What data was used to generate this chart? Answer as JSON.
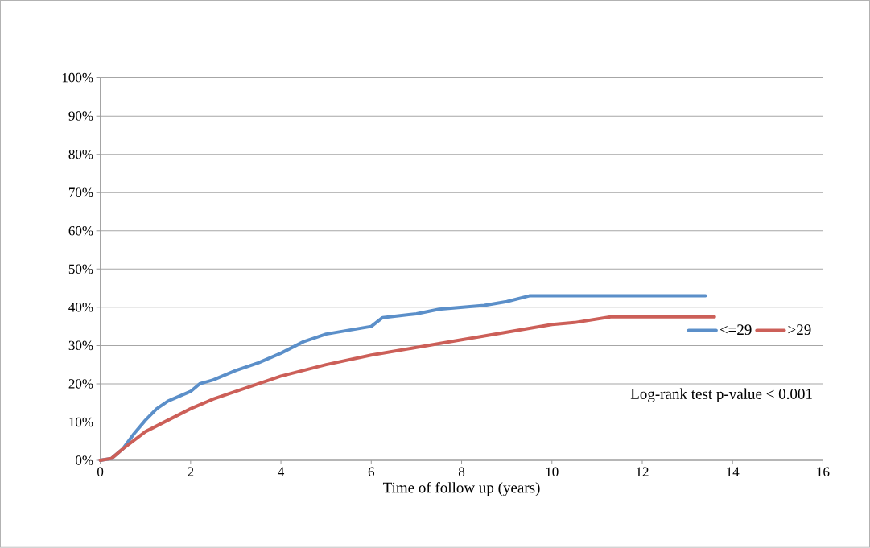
{
  "chart_data": {
    "type": "line",
    "xlabel": "Time of follow up (years)",
    "xlim": [
      0,
      16
    ],
    "xticks": [
      0,
      2,
      4,
      6,
      8,
      10,
      12,
      14,
      16
    ],
    "ylim": [
      0,
      100
    ],
    "yticks": [
      {
        "value": 0,
        "label": "0%"
      },
      {
        "value": 10,
        "label": "10%"
      },
      {
        "value": 20,
        "label": "20%"
      },
      {
        "value": 30,
        "label": "30%"
      },
      {
        "value": 40,
        "label": "40%"
      },
      {
        "value": 50,
        "label": "50%"
      },
      {
        "value": 60,
        "label": "60%"
      },
      {
        "value": 70,
        "label": "70%"
      },
      {
        "value": 80,
        "label": "80%"
      },
      {
        "value": 90,
        "label": "90%"
      },
      {
        "value": 100,
        "label": "100%"
      }
    ],
    "grid": "y",
    "legend": "right",
    "annotations": [
      "Log-rank test p-value  < 0.001"
    ],
    "series": [
      {
        "name": "<=29",
        "color": "#5b8fc9",
        "x": [
          0,
          0.25,
          0.5,
          0.75,
          1,
          1.25,
          1.5,
          2,
          2.2,
          2.5,
          3,
          3.5,
          4,
          4.5,
          5,
          5.5,
          6,
          6.25,
          7,
          7.5,
          8.5,
          9,
          9.5,
          13.4
        ],
        "values": [
          0,
          0.5,
          3,
          7,
          10.5,
          13.5,
          15.5,
          18,
          20,
          21,
          23.5,
          25.5,
          28,
          31,
          33,
          34,
          35,
          37.3,
          38.3,
          39.5,
          40.5,
          41.5,
          43,
          43
        ]
      },
      {
        "name": ">29",
        "color": "#cc5f58",
        "x": [
          0,
          0.25,
          0.5,
          1,
          1.5,
          2,
          2.5,
          3,
          3.5,
          4,
          5,
          6,
          7,
          8,
          9,
          10,
          10.5,
          11.3,
          13.6
        ],
        "values": [
          0,
          0.5,
          3,
          7.5,
          10.5,
          13.5,
          16,
          18,
          20,
          22,
          25,
          27.5,
          29.5,
          31.5,
          33.5,
          35.5,
          36,
          37.5,
          37.5
        ]
      }
    ]
  }
}
